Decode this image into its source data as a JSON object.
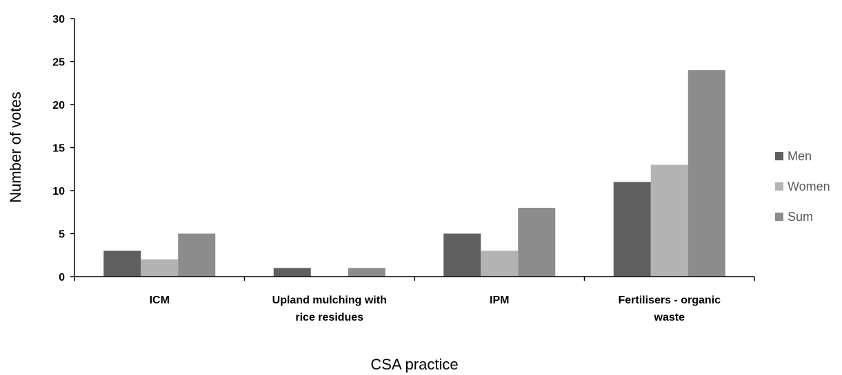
{
  "chart_data": {
    "type": "bar",
    "title": "",
    "xlabel": "CSA practice",
    "ylabel": "Number of votes",
    "ylim": [
      0,
      30
    ],
    "yticks": [
      0,
      5,
      10,
      15,
      20,
      25,
      30
    ],
    "grid": false,
    "legend_position": "right",
    "categories": [
      [
        "ICM"
      ],
      [
        "Upland mulching with",
        "rice residues"
      ],
      [
        "IPM"
      ],
      [
        "Fertilisers - organic",
        "waste"
      ]
    ],
    "series": [
      {
        "name": "Men",
        "color": "#5f5f5f",
        "values": [
          3,
          1,
          5,
          11
        ]
      },
      {
        "name": "Women",
        "color": "#b3b3b3",
        "values": [
          2,
          0,
          3,
          13
        ]
      },
      {
        "name": "Sum",
        "color": "#8c8c8c",
        "values": [
          5,
          1,
          8,
          24
        ]
      }
    ]
  }
}
